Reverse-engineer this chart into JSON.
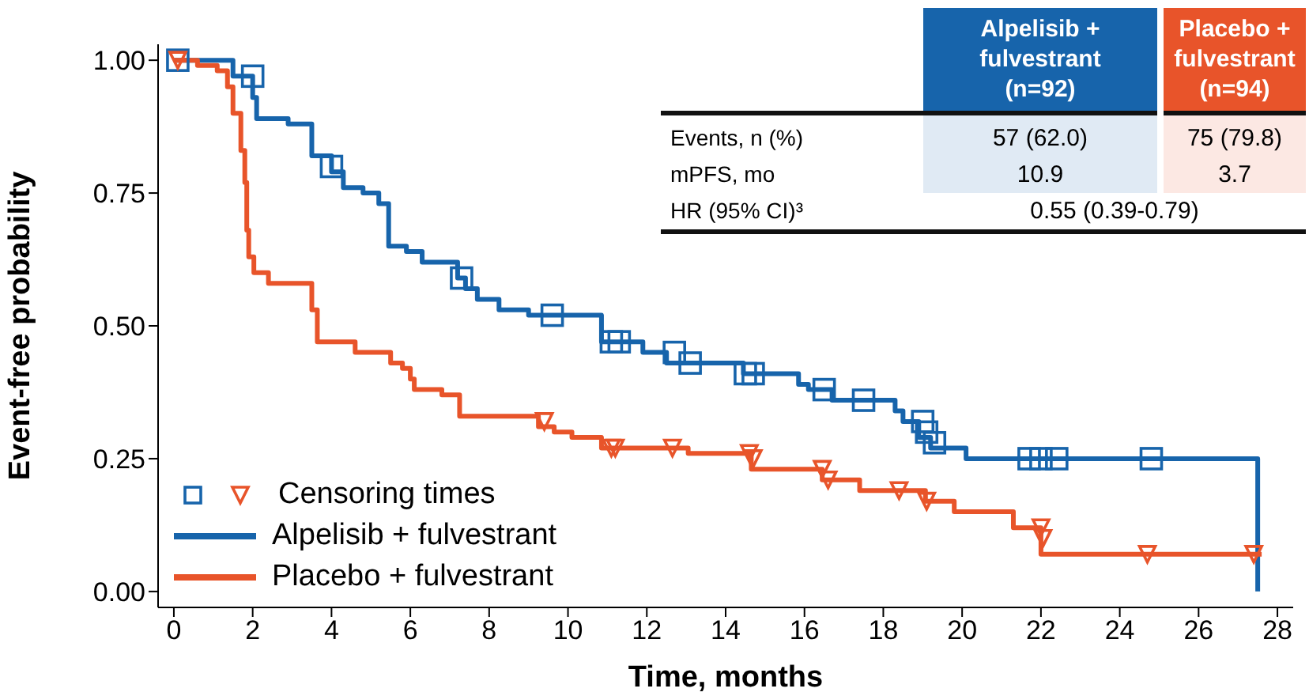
{
  "chart_data": {
    "type": "step",
    "xlabel": "Time, months",
    "ylabel": "Event-free probability",
    "xlim": [
      -0.4,
      28.4
    ],
    "xticks": [
      0,
      2,
      4,
      6,
      8,
      10,
      12,
      14,
      16,
      18,
      20,
      22,
      24,
      26,
      28
    ],
    "ylim": [
      -0.03,
      1.03
    ],
    "yticks": [
      {
        "value": 0,
        "label": "0.00"
      },
      {
        "value": 0.25,
        "label": "0.25"
      },
      {
        "value": 0.5,
        "label": "0.50"
      },
      {
        "value": 0.75,
        "label": "0.75"
      },
      {
        "value": 1,
        "label": "1.00"
      }
    ],
    "legend": "bottom left",
    "line_style": "solid",
    "series": [
      {
        "name": "Alpelisib + fulvestrant",
        "color": "#1764ab",
        "x": [
          0,
          1.5,
          2.0,
          2.1,
          2.9,
          3.5,
          4.0,
          4.3,
          4.8,
          5.2,
          5.45,
          5.9,
          6.3,
          7.2,
          7.4,
          7.7,
          8.25,
          9.0,
          10.85,
          11.3,
          11.9,
          12.5,
          14.45,
          15.85,
          16.1,
          16.7,
          18.3,
          18.5,
          18.9,
          19.2,
          20.1,
          27.5,
          27.5
        ],
        "values": [
          1.0,
          0.97,
          0.93,
          0.89,
          0.88,
          0.82,
          0.79,
          0.76,
          0.75,
          0.73,
          0.65,
          0.64,
          0.62,
          0.59,
          0.57,
          0.55,
          0.53,
          0.52,
          0.47,
          0.47,
          0.45,
          0.43,
          0.41,
          0.39,
          0.38,
          0.36,
          0.34,
          0.32,
          0.29,
          0.27,
          0.25,
          0.25,
          0
        ]
      },
      {
        "name": "Placebo + fulvestrant",
        "color": "#e8542a",
        "x": [
          0,
          0.6,
          1.1,
          1.36,
          1.5,
          1.7,
          1.8,
          1.85,
          1.9,
          2.03,
          2.4,
          3.5,
          3.64,
          4.6,
          5.5,
          5.8,
          6.0,
          6.1,
          6.8,
          7.25,
          9.25,
          9.65,
          10.1,
          10.85,
          13.05,
          14.65,
          16.45,
          17.4,
          19.07,
          19.8,
          21.3,
          22.0,
          27.6
        ],
        "values": [
          1.0,
          0.99,
          0.98,
          0.95,
          0.9,
          0.83,
          0.77,
          0.68,
          0.63,
          0.6,
          0.58,
          0.53,
          0.47,
          0.45,
          0.43,
          0.42,
          0.4,
          0.38,
          0.37,
          0.33,
          0.31,
          0.3,
          0.29,
          0.27,
          0.26,
          0.23,
          0.21,
          0.19,
          0.17,
          0.15,
          0.12,
          0.07,
          0.07
        ]
      },
      {
        "type": "scatter",
        "marker": "square",
        "color": "#1764ab",
        "x": [
          0.1,
          2.0,
          4.0,
          7.3,
          9.6,
          11.1,
          11.3,
          12.7,
          13.1,
          14.5,
          14.7,
          16.5,
          17.5,
          19.0,
          19.1,
          19.3,
          21.7,
          22.0,
          22.4,
          24.8
        ],
        "values": [
          1.0,
          0.97,
          0.8,
          0.59,
          0.52,
          0.47,
          0.47,
          0.45,
          0.43,
          0.41,
          0.41,
          0.38,
          0.36,
          0.32,
          0.3,
          0.28,
          0.25,
          0.25,
          0.25,
          0.25
        ]
      },
      {
        "name": "Censoring times",
        "type": "scatter",
        "marker": "triangle",
        "color": "#e8542a",
        "x": [
          0.1,
          9.4,
          11.1,
          11.2,
          12.65,
          14.6,
          14.7,
          16.45,
          16.6,
          18.4,
          19.1,
          22.0,
          22.05,
          24.7,
          27.4
        ],
        "values": [
          1.0,
          0.32,
          0.27,
          0.27,
          0.27,
          0.26,
          0.25,
          0.23,
          0.21,
          0.19,
          0.17,
          0.12,
          0.1,
          0.07,
          0.07
        ]
      }
    ],
    "annotations": [
      "Alpelisib + fulvestrant (n=92)",
      "Placebo + fulvestrant (n=94)",
      "Events, n (%)",
      "57 (62.0)",
      "75 (79.8)",
      "mPFS, mo",
      "10.9",
      "3.7",
      "HR (95% CI)³",
      "0.55 (0.39-0.79)"
    ]
  }
}
